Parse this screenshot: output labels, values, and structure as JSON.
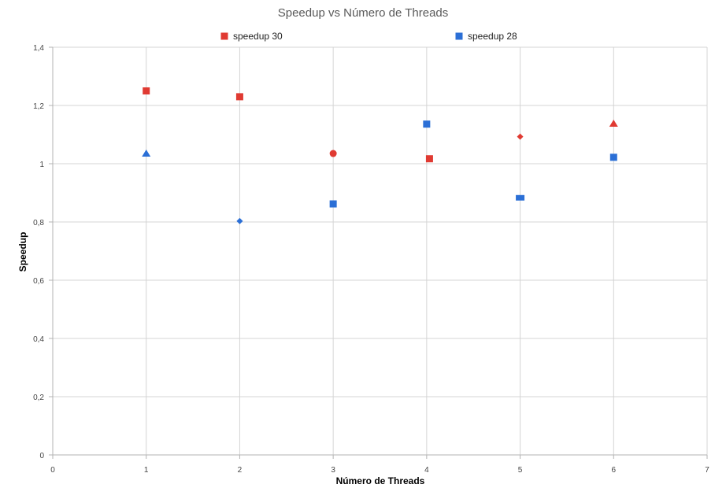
{
  "chart_data": {
    "type": "scatter",
    "title": "Speedup vs Número de Threads",
    "xlabel": "Número de Threads",
    "ylabel": "Speedup",
    "xlim": [
      0,
      7
    ],
    "ylim": [
      0,
      1.4
    ],
    "x_ticks": [
      0,
      1,
      2,
      3,
      4,
      5,
      6,
      7
    ],
    "x_tick_labels": [
      "0",
      "1",
      "2",
      "3",
      "4",
      "5",
      "6",
      "7"
    ],
    "y_ticks": [
      0,
      0.2,
      0.4,
      0.6,
      0.8,
      1.0,
      1.2,
      1.4
    ],
    "y_tick_labels": [
      "0",
      "0,2",
      "0,4",
      "0,6",
      "0,8",
      "1",
      "1,2",
      "1,4"
    ],
    "grid": true,
    "legend_position": "top",
    "series": [
      {
        "name": "speedup 30",
        "color": "#e03a32",
        "points": [
          {
            "x": 1,
            "y": 1.25,
            "marker": "square"
          },
          {
            "x": 2,
            "y": 1.23,
            "marker": "square"
          },
          {
            "x": 3,
            "y": 1.035,
            "marker": "circle"
          },
          {
            "x": 4.03,
            "y": 1.017,
            "marker": "square"
          },
          {
            "x": 5,
            "y": 1.093,
            "marker": "diamond"
          },
          {
            "x": 6,
            "y": 1.138,
            "marker": "triangle"
          }
        ]
      },
      {
        "name": "speedup 28",
        "color": "#2b6fd6",
        "points": [
          {
            "x": 1,
            "y": 1.035,
            "marker": "triangle"
          },
          {
            "x": 2,
            "y": 0.803,
            "marker": "diamond"
          },
          {
            "x": 3,
            "y": 0.862,
            "marker": "square"
          },
          {
            "x": 4,
            "y": 1.136,
            "marker": "square"
          },
          {
            "x": 5,
            "y": 0.883,
            "marker": "rect"
          },
          {
            "x": 6,
            "y": 1.022,
            "marker": "square"
          }
        ]
      }
    ]
  }
}
